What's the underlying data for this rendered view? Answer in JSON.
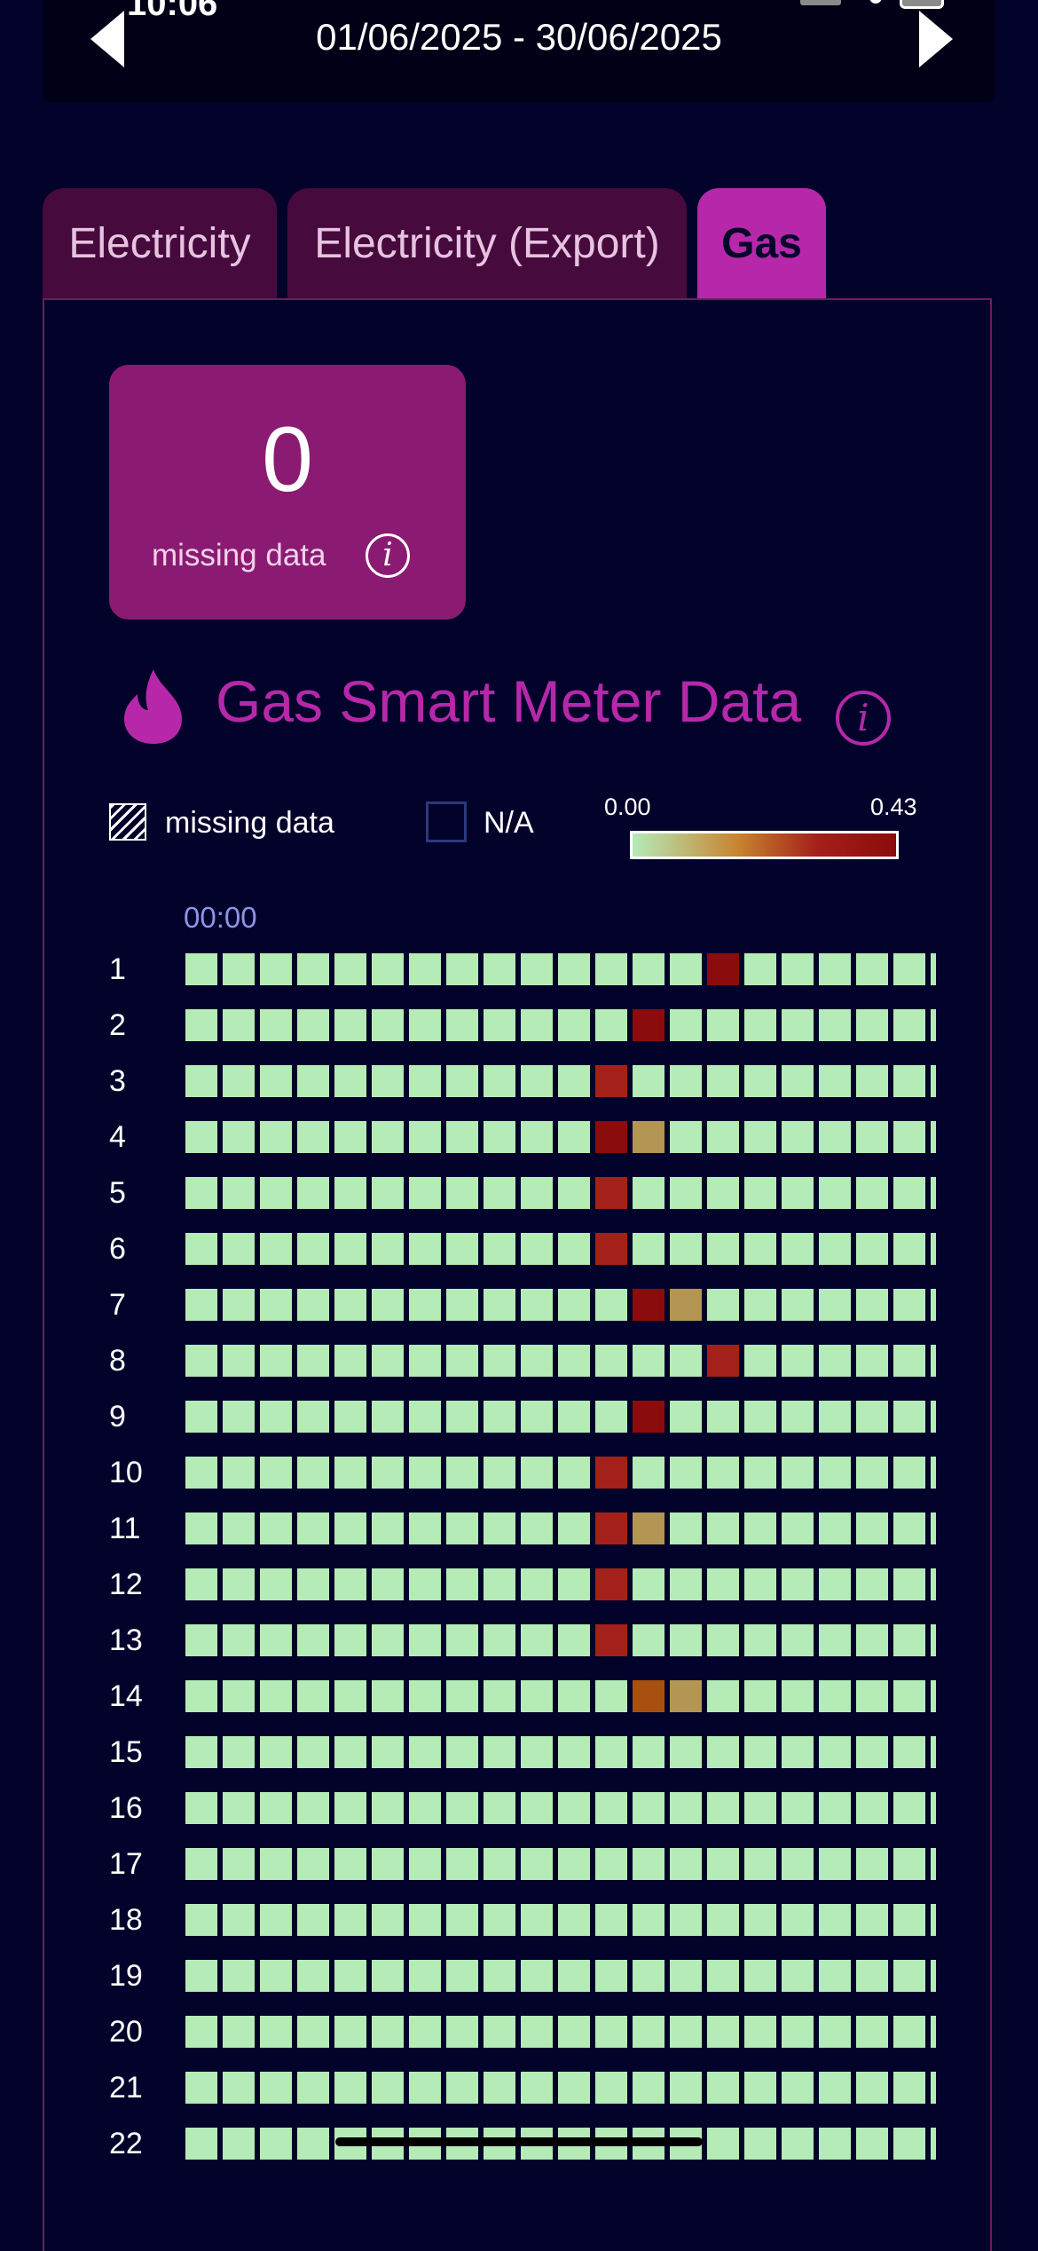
{
  "status_bar": {
    "time": "10:06"
  },
  "date_range": "01/06/2025 - 30/06/2025",
  "tabs": [
    {
      "label": "Electricity",
      "active": false
    },
    {
      "label": "Electricity (Export)",
      "active": false
    },
    {
      "label": "Gas",
      "active": true
    }
  ],
  "missing_card": {
    "count": "0",
    "label": "missing data"
  },
  "section": {
    "title": "Gas Smart Meter Data"
  },
  "legend": {
    "missing_label": "missing data",
    "na_label": "N/A",
    "scale_min": "0.00",
    "scale_max": "0.43"
  },
  "heatmap": {
    "time_label": "00:00",
    "colors": {
      "low": "#b5ebb7",
      "tan": "#b49654",
      "orange": "#a8500f",
      "redorange": "#a4201a",
      "red": "#8b0c0c"
    },
    "rows": [
      {
        "day": "1",
        "highlights": [
          {
            "col": 14,
            "color": "red"
          }
        ]
      },
      {
        "day": "2",
        "highlights": [
          {
            "col": 12,
            "color": "red"
          }
        ]
      },
      {
        "day": "3",
        "highlights": [
          {
            "col": 11,
            "color": "redorange"
          }
        ]
      },
      {
        "day": "4",
        "highlights": [
          {
            "col": 11,
            "color": "red"
          },
          {
            "col": 12,
            "color": "tan"
          }
        ]
      },
      {
        "day": "5",
        "highlights": [
          {
            "col": 11,
            "color": "redorange"
          }
        ]
      },
      {
        "day": "6",
        "highlights": [
          {
            "col": 11,
            "color": "redorange"
          }
        ]
      },
      {
        "day": "7",
        "highlights": [
          {
            "col": 12,
            "color": "red"
          },
          {
            "col": 13,
            "color": "tan"
          }
        ]
      },
      {
        "day": "8",
        "highlights": [
          {
            "col": 14,
            "color": "redorange"
          }
        ]
      },
      {
        "day": "9",
        "highlights": [
          {
            "col": 12,
            "color": "red"
          }
        ]
      },
      {
        "day": "10",
        "highlights": [
          {
            "col": 11,
            "color": "redorange"
          }
        ]
      },
      {
        "day": "11",
        "highlights": [
          {
            "col": 11,
            "color": "redorange"
          },
          {
            "col": 12,
            "color": "tan"
          }
        ]
      },
      {
        "day": "12",
        "highlights": [
          {
            "col": 11,
            "color": "redorange"
          }
        ]
      },
      {
        "day": "13",
        "highlights": [
          {
            "col": 11,
            "color": "redorange"
          }
        ]
      },
      {
        "day": "14",
        "highlights": [
          {
            "col": 12,
            "color": "orange"
          },
          {
            "col": 13,
            "color": "tan"
          }
        ]
      },
      {
        "day": "15",
        "highlights": []
      },
      {
        "day": "16",
        "highlights": []
      },
      {
        "day": "17",
        "highlights": []
      },
      {
        "day": "18",
        "highlights": []
      },
      {
        "day": "19",
        "highlights": []
      },
      {
        "day": "20",
        "highlights": []
      },
      {
        "day": "21",
        "highlights": []
      },
      {
        "day": "22",
        "highlights": []
      }
    ]
  }
}
